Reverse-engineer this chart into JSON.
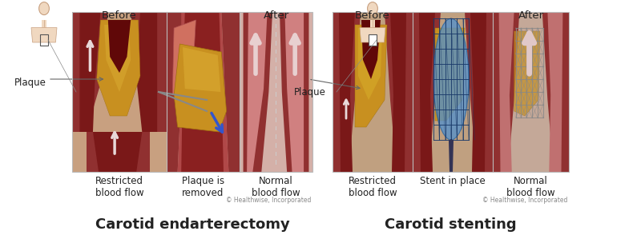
{
  "title_left": "Carotid endarterectomy",
  "title_right": "Carotid stenting",
  "before_label": "Before",
  "after_label": "After",
  "plaque_label": "Plaque",
  "caption_left1": "Restricted\nblood flow",
  "caption_left2": "Plaque is\nremoved",
  "caption_left3": "Normal\nblood flow",
  "caption_right1": "Restricted\nblood flow",
  "caption_right2": "Stent in place",
  "caption_right3": "Normal\nblood flow",
  "copyright": "© Healthwise, Incorporated",
  "bg_color": "#ffffff",
  "title_fontsize": 13,
  "label_fontsize": 9.5,
  "caption_fontsize": 8.5,
  "vessel_wall": "#a03030",
  "vessel_inner": "#7a1818",
  "vessel_dark_inner": "#5a0808",
  "vessel_light": "#c86060",
  "vessel_pink": "#d89090",
  "plaque_gold": "#c8940a",
  "plaque_light": "#d4a830",
  "blue_stent": "#3a7abf",
  "blue_stent_light": "#6aaad9",
  "stent_mesh": "#1a3a6a",
  "gray_mesh": "#888888",
  "border_color": "#bbbbbb",
  "arrow_light": "#e8d0d0",
  "arrow_white": "#f0e0e0",
  "blue_arrow": "#2255bb",
  "gray_arrow": "#888888",
  "text_dark": "#222222",
  "text_gray": "#888888"
}
